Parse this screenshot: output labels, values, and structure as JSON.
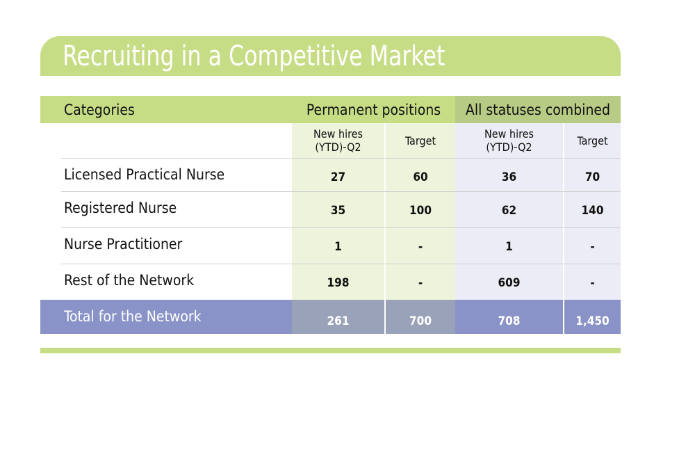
{
  "title": "Recruiting in a Competitive Market",
  "table": {
    "header": [
      "Categories",
      "Permanent positions",
      "All statuses combined"
    ],
    "subheader": [
      "New hires\n(YTD)-Q2",
      "Target",
      "New hires\n(YTD)-Q2",
      "Target"
    ],
    "rows": [
      [
        "Licensed Practical Nurse",
        "27",
        "60",
        "36",
        "70"
      ],
      [
        "Registered Nurse",
        "35",
        "100",
        "62",
        "140"
      ],
      [
        "Nurse Practitioner",
        "1",
        "-",
        "1",
        "-"
      ],
      [
        "Rest of the Network",
        "198",
        "-",
        "609",
        "-"
      ]
    ],
    "total": [
      "Total for the Network",
      "261",
      "700",
      "708",
      "1,450"
    ]
  }
}
